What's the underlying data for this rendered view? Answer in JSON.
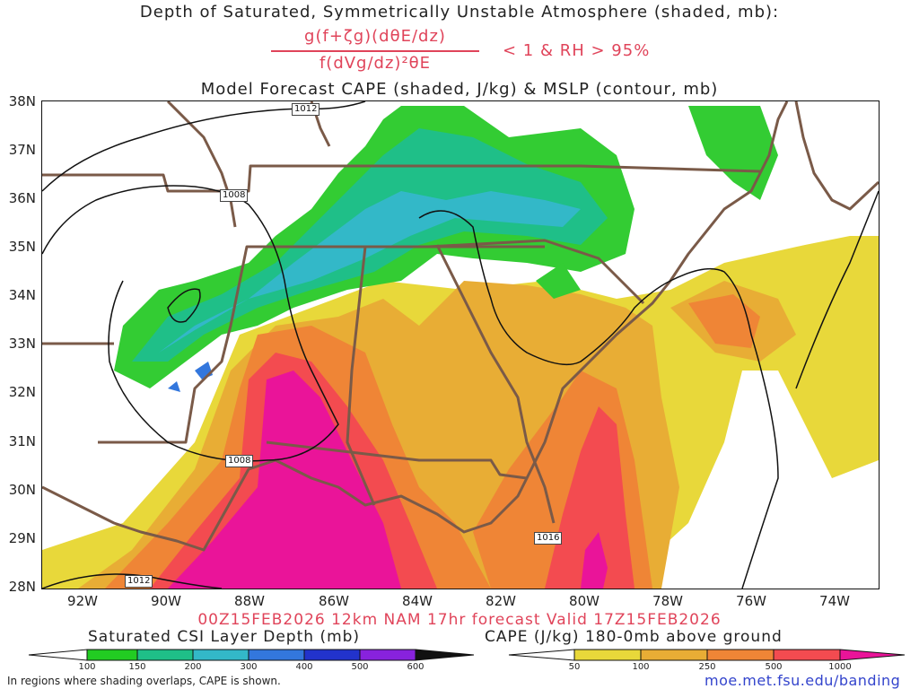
{
  "header": {
    "title_line1": "Depth of Saturated, Symmetrically Unstable Atmosphere (shaded, mb):",
    "fraction_numerator": "g(f+ζg)(dθE/dz)",
    "fraction_denominator": "f(dVg/dz)²θE",
    "condition": "< 1 & RH > 95%",
    "title_line3": "Model Forecast CAPE (shaded, J/kg) & MSLP (contour, mb)"
  },
  "map": {
    "lat_labels": [
      "38N",
      "37N",
      "36N",
      "35N",
      "34N",
      "33N",
      "32N",
      "31N",
      "30N",
      "29N",
      "28N"
    ],
    "lon_labels": [
      "92W",
      "90W",
      "88W",
      "86W",
      "84W",
      "82W",
      "80W",
      "78W",
      "76W",
      "74W"
    ],
    "isobar_labels": [
      "1012",
      "1008",
      "1008",
      "1012",
      "1016"
    ],
    "colors": {
      "border": "#7a5a48",
      "isobar": "#111111",
      "cape_yellow": "#e8d83a",
      "cape_gold": "#e8ad35",
      "cape_orange": "#ef8536",
      "cape_red": "#f34b50",
      "cape_magenta": "#ea1499",
      "csi_green": "#33cc33",
      "csi_teal": "#1fbf88",
      "csi_cyan": "#33b8c8",
      "csi_blue": "#3377dd"
    }
  },
  "footer": {
    "valid": "00Z15FEB2026 12km NAM 17hr forecast Valid 17Z15FEB2026",
    "csi_label": "Saturated CSI Layer Depth (mb)",
    "cape_label": "CAPE (J/kg) 180-0mb above ground",
    "csi_ticks": [
      "100",
      "150",
      "200",
      "300",
      "400",
      "500",
      "600"
    ],
    "cape_ticks": [
      "50",
      "100",
      "250",
      "500",
      "1000"
    ],
    "note": "In regions where shading overlaps, CAPE is shown.",
    "url": "moe.met.fsu.edu/banding"
  }
}
